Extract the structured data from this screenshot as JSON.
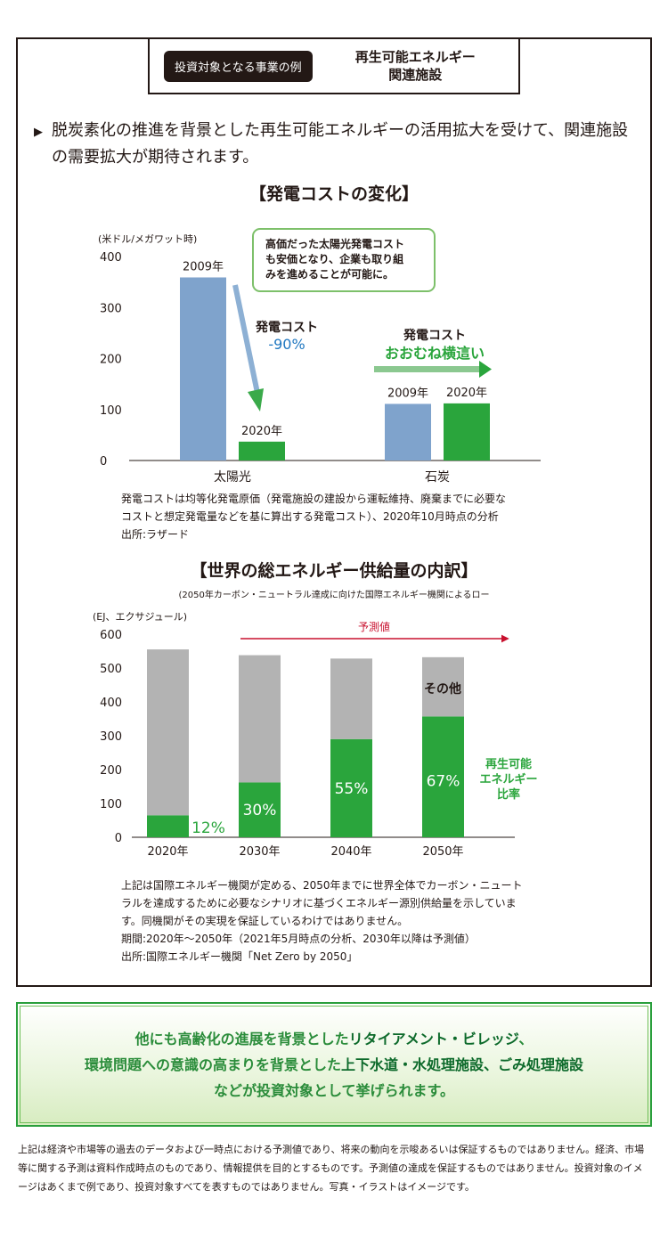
{
  "header": {
    "pill": "投資対象となる事業の例",
    "title_line1": "再生可能エネルギー",
    "title_line2": "関連施設"
  },
  "lead": {
    "marker": "▶",
    "text": "脱炭素化の推進を背景とした再生可能エネルギーの活用拡大を受けて、関連施設の需要拡大が期待されます。"
  },
  "chart1": {
    "title": "【発電コストの変化】",
    "callout_line1": "高価だった太陽光発電コスト",
    "callout_line2": "も安価となり、企業も取り組",
    "callout_line3": "みを進めることが可能に。",
    "solar_annot_label": "発電コスト",
    "solar_annot_value": "-90%",
    "coal_annot_label": "発電コスト",
    "coal_annot_value": "おおむね横這い",
    "note_line1": "発電コストは均等化発電原価（発電施設の建設から運転維持、廃棄までに必要な",
    "note_line2": "コストと想定発電量などを基に算出する発電コスト）、2020年10月時点の分析",
    "note_line3": "出所:ラザード"
  },
  "chart2": {
    "title": "【世界の総エネルギー供給量の内訳】",
    "subtitle": "(2050年カーボン・ニュートラル達成に向けた国際エネルギー機関によるロー",
    "forecast_label": "予測値",
    "other_label": "その他",
    "renew_label_line1": "再生可能",
    "renew_label_line2": "エネルギー",
    "renew_label_line3": "比率",
    "note_line1": "上記は国際エネルギー機関が定める、2050年までに世界全体でカーボン・ニュート",
    "note_line2": "ラルを達成するために必要なシナリオに基づくエネルギー源別供給量を示していま",
    "note_line3": "す。同機関がその実現を保証しているわけではありません。",
    "note_line4": "期間:2020年～2050年（2021年5月時点の分析、2030年以降は予測値）",
    "note_line5": "出所:国際エネルギー機関「Net Zero by 2050」"
  },
  "chart_data": [
    {
      "type": "bar",
      "title": "【発電コストの変化】",
      "ylabel": "(米ドル/メガワット時)",
      "ylim": [
        0,
        400
      ],
      "yticks": [
        "0",
        "100",
        "200",
        "300",
        "400"
      ],
      "categories": [
        "太陽光",
        "石炭"
      ],
      "series": [
        {
          "name": "2009年",
          "color": "#7fa3cc",
          "values": [
            359,
            111
          ]
        },
        {
          "name": "2020年",
          "color": "#2aa53c",
          "values": [
            37,
            112
          ]
        }
      ]
    },
    {
      "type": "bar",
      "stacked": true,
      "title": "【世界の総エネルギー供給量の内訳】",
      "ylabel": "(EJ、エクサジュール)",
      "ylim": [
        0,
        600
      ],
      "yticks": [
        "0",
        "100",
        "200",
        "300",
        "400",
        "500",
        "600"
      ],
      "categories": [
        "2020年",
        "2030年",
        "2040年",
        "2050年"
      ],
      "series": [
        {
          "name": "再生可能エネルギー",
          "color": "#2aa53c",
          "values": [
            65,
            162,
            290,
            357
          ]
        },
        {
          "name": "その他",
          "color": "#b3b3b3",
          "values": [
            490,
            376,
            238,
            175
          ]
        }
      ],
      "share_labels": [
        "12%",
        "30%",
        "55%",
        "67%"
      ]
    }
  ],
  "banner": {
    "line1_a": "他にも高齢化の進展を背景とした",
    "line1_b": "リタイアメント・ビレッジ",
    "line1_c": "、",
    "line2_a": "環境問題への意識の高まりを背景とした",
    "line2_b": "上下水道・水処理施設、ごみ処理施設",
    "line3": "などが投資対象として挙げられます。"
  },
  "disclaimer": "上記は経済や市場等の過去のデータおよび一時点における予測値であり、将来の動向を示唆あるいは保証するものではありません。経済、市場等に関する予測は資料作成時点のものであり、情報提供を目的とするものです。予測値の達成を保証するものではありません。投資対象のイメージはあくまで例であり、投資対象すべてを表すものではありません。写真・イラストはイメージです。"
}
